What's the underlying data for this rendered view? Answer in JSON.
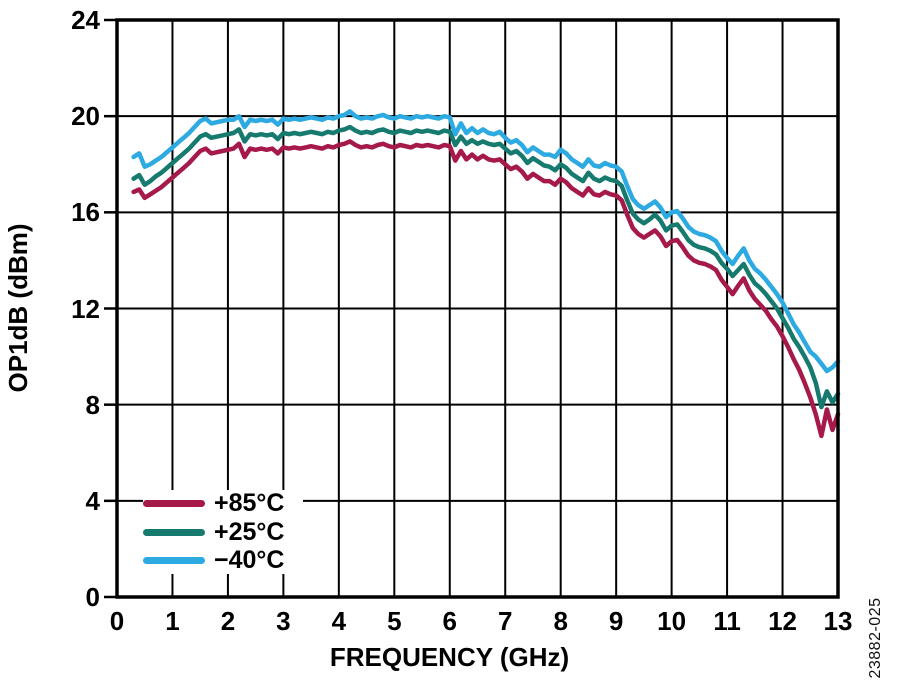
{
  "figure": {
    "watermark": "23882-025",
    "background": "#ffffff",
    "axis_color": "#000000",
    "grid_color": "#000000"
  },
  "chart_data": {
    "type": "line",
    "title": "",
    "xlabel": "FREQUENCY (GHz)",
    "ylabel": "OP1dB (dBm)",
    "xlim": [
      0,
      13
    ],
    "ylim": [
      0,
      24
    ],
    "x_ticks": [
      0,
      1,
      2,
      3,
      4,
      5,
      6,
      7,
      8,
      9,
      10,
      11,
      12,
      13
    ],
    "y_ticks": [
      0,
      4,
      8,
      12,
      16,
      20,
      24
    ],
    "grid": true,
    "legend_position": "bottom-left",
    "x_start": 0.3,
    "x_step": 0.1,
    "series": [
      {
        "name": "+85°C",
        "color": "#A6194B",
        "values": [
          16.85,
          16.95,
          16.6,
          16.75,
          16.9,
          17.05,
          17.25,
          17.45,
          17.65,
          17.85,
          18.05,
          18.3,
          18.55,
          18.65,
          18.45,
          18.5,
          18.55,
          18.6,
          18.65,
          18.85,
          18.3,
          18.65,
          18.6,
          18.65,
          18.6,
          18.65,
          18.45,
          18.7,
          18.65,
          18.7,
          18.65,
          18.7,
          18.75,
          18.7,
          18.65,
          18.75,
          18.7,
          18.8,
          18.85,
          18.95,
          18.8,
          18.7,
          18.75,
          18.7,
          18.8,
          18.85,
          18.75,
          18.7,
          18.8,
          18.75,
          18.7,
          18.8,
          18.75,
          18.8,
          18.75,
          18.7,
          18.8,
          18.75,
          18.15,
          18.55,
          18.2,
          18.4,
          18.2,
          18.35,
          18.2,
          18.15,
          18.2,
          18.0,
          17.8,
          17.9,
          17.7,
          17.4,
          17.6,
          17.45,
          17.3,
          17.3,
          17.15,
          17.4,
          17.25,
          17.0,
          16.85,
          16.7,
          17.0,
          16.75,
          16.7,
          16.85,
          16.75,
          16.7,
          16.5,
          15.9,
          15.35,
          15.1,
          14.95,
          15.1,
          15.25,
          15.0,
          14.6,
          14.8,
          14.85,
          14.55,
          14.2,
          14.0,
          13.9,
          13.85,
          13.75,
          13.6,
          13.2,
          12.9,
          12.6,
          12.95,
          13.25,
          12.75,
          12.4,
          12.15,
          11.9,
          11.55,
          11.25,
          10.85,
          10.4,
          9.9,
          9.45,
          8.9,
          8.3,
          7.6,
          6.7,
          7.8,
          6.95,
          7.6
        ]
      },
      {
        "name": "+25°C",
        "color": "#167A6E",
        "values": [
          17.4,
          17.55,
          17.15,
          17.3,
          17.5,
          17.65,
          17.85,
          18.05,
          18.25,
          18.45,
          18.65,
          18.9,
          19.15,
          19.25,
          19.1,
          19.15,
          19.2,
          19.25,
          19.3,
          19.45,
          18.95,
          19.25,
          19.2,
          19.25,
          19.2,
          19.25,
          19.05,
          19.3,
          19.25,
          19.3,
          19.25,
          19.3,
          19.35,
          19.3,
          19.25,
          19.35,
          19.3,
          19.4,
          19.45,
          19.55,
          19.4,
          19.3,
          19.35,
          19.3,
          19.4,
          19.45,
          19.35,
          19.3,
          19.4,
          19.35,
          19.3,
          19.4,
          19.35,
          19.4,
          19.35,
          19.3,
          19.4,
          19.35,
          18.8,
          19.15,
          18.85,
          19.0,
          18.85,
          18.95,
          18.85,
          18.8,
          18.85,
          18.65,
          18.45,
          18.55,
          18.35,
          18.05,
          18.25,
          18.1,
          17.95,
          17.9,
          17.75,
          18.0,
          17.85,
          17.6,
          17.45,
          17.3,
          17.65,
          17.4,
          17.3,
          17.45,
          17.35,
          17.3,
          17.1,
          16.5,
          15.95,
          15.7,
          15.55,
          15.7,
          15.9,
          15.65,
          15.25,
          15.45,
          15.5,
          15.2,
          14.85,
          14.65,
          14.55,
          14.5,
          14.4,
          14.25,
          13.9,
          13.65,
          13.35,
          13.6,
          13.85,
          13.4,
          13.05,
          12.85,
          12.6,
          12.3,
          12.0,
          11.6,
          11.2,
          10.75,
          10.4,
          10.0,
          9.55,
          8.9,
          7.9,
          8.55,
          8.1,
          8.45
        ]
      },
      {
        "name": "−40°C",
        "color": "#2CAAE1",
        "values": [
          18.3,
          18.45,
          17.9,
          18.0,
          18.15,
          18.3,
          18.5,
          18.7,
          18.9,
          19.1,
          19.3,
          19.55,
          19.8,
          19.9,
          19.7,
          19.75,
          19.8,
          19.85,
          19.85,
          20.0,
          19.55,
          19.85,
          19.8,
          19.85,
          19.8,
          19.85,
          19.65,
          19.9,
          19.85,
          19.9,
          19.85,
          19.9,
          19.95,
          19.9,
          19.85,
          19.95,
          19.9,
          20.0,
          20.05,
          20.2,
          20.0,
          19.9,
          19.95,
          19.9,
          20.0,
          20.05,
          19.95,
          19.9,
          20.0,
          19.95,
          19.9,
          20.0,
          19.95,
          20.0,
          19.95,
          19.9,
          20.0,
          19.95,
          19.25,
          19.7,
          19.3,
          19.5,
          19.3,
          19.45,
          19.3,
          19.25,
          19.35,
          19.1,
          18.9,
          19.0,
          18.8,
          18.5,
          18.7,
          18.55,
          18.4,
          18.4,
          18.3,
          18.6,
          18.45,
          18.2,
          18.05,
          17.9,
          18.2,
          17.95,
          17.9,
          18.05,
          17.95,
          17.9,
          17.7,
          17.1,
          16.55,
          16.3,
          16.15,
          16.3,
          16.45,
          16.2,
          15.8,
          16.0,
          16.05,
          15.75,
          15.4,
          15.2,
          15.1,
          15.05,
          14.95,
          14.8,
          14.4,
          14.1,
          13.85,
          14.2,
          14.5,
          14.0,
          13.65,
          13.45,
          13.2,
          12.9,
          12.6,
          12.25,
          11.8,
          11.35,
          11.0,
          10.6,
          10.2,
          10.0,
          9.7,
          9.4,
          9.55,
          9.8
        ]
      }
    ]
  }
}
